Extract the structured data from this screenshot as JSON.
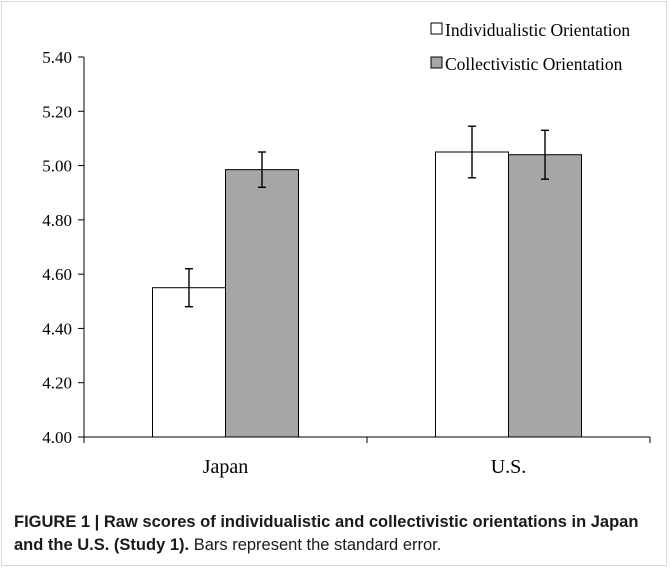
{
  "chart_data": {
    "type": "bar",
    "categories": [
      "Japan",
      "U.S."
    ],
    "series": [
      {
        "name": "Individualistic Orientation",
        "values": [
          4.55,
          5.05
        ],
        "errors": [
          0.07,
          0.095
        ]
      },
      {
        "name": "Collectivistic Orientation",
        "values": [
          4.985,
          5.04
        ],
        "errors": [
          0.065,
          0.09
        ]
      }
    ],
    "ylim": [
      4.0,
      5.4
    ],
    "yticks": [
      "4.00",
      "4.20",
      "4.40",
      "4.60",
      "4.80",
      "5.00",
      "5.20",
      "5.40"
    ],
    "legend_position": "top-right",
    "grid": false
  },
  "colors": {
    "individualistic": "#ffffff",
    "collectivistic": "#a6a6a6",
    "axis": "#000000"
  },
  "caption": {
    "figure_label": "FIGURE 1 | Raw scores of individualistic and collectivistic orientations in Japan and the U.S. (Study 1).",
    "note": "Bars represent the standard error."
  }
}
